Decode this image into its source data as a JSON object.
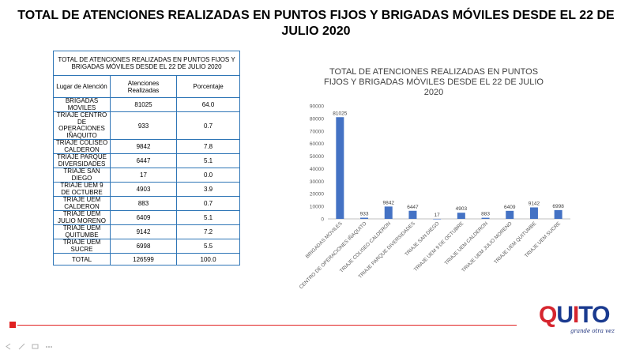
{
  "slide": {
    "title": "TOTAL DE ATENCIONES REALIZADAS EN PUNTOS FIJOS Y BRIGADAS MÓVILES DESDE EL 22 DE JULIO 2020"
  },
  "table": {
    "caption": "TOTAL DE ATENCIONES REALIZADAS  EN PUNTOS FIJOS Y BRIGADAS MÓVILES DESDE EL 22 DE JULIO 2020",
    "headers": [
      "Lugar de Atención",
      "Atenciones Realizadas",
      "Porcentaje"
    ],
    "rows": [
      {
        "place": "BRIGADAS MOVILES",
        "count": "81025",
        "pct": "64.0"
      },
      {
        "place": "TRIAJE CENTRO DE OPERACIONES IÑAQUITO",
        "count": "933",
        "pct": "0.7"
      },
      {
        "place": "TRIAJE COLISEO CALDERON",
        "count": "9842",
        "pct": "7.8"
      },
      {
        "place": "TRIAJE PARQUE DIVERSIDADES",
        "count": "6447",
        "pct": "5.1"
      },
      {
        "place": "TRIAJE SAN DIEGO",
        "count": "17",
        "pct": "0.0"
      },
      {
        "place": "TRIAJE UEM 9 DE OCTUBRE",
        "count": "4903",
        "pct": "3.9"
      },
      {
        "place": "TRIAJE UEM CALDERON",
        "count": "883",
        "pct": "0.7"
      },
      {
        "place": "TRIAJE UEM JULIO MORENO",
        "count": "6409",
        "pct": "5.1"
      },
      {
        "place": "TRIAJE UEM QUITUMBE",
        "count": "9142",
        "pct": "7.2"
      },
      {
        "place": "TRIAJE UEM SUCRE",
        "count": "6998",
        "pct": "5.5"
      }
    ],
    "total": {
      "place": "TOTAL",
      "count": "126599",
      "pct": "100.0"
    }
  },
  "chart_data": {
    "type": "bar",
    "title": "TOTAL DE ATENCIONES REALIZADAS EN PUNTOS FIJOS Y BRIGADAS MÓVILES DESDE EL 22 DE JULIO 2020",
    "categories": [
      "BRIGADAS MOVILES",
      "CENTRO DE OPERACIONES IÑAQUITO",
      "TRIAJE COLISEO CALDERON",
      "TRIAJE PARQUE DIVERSIDADES",
      "TRIAJE SAN DIEGO",
      "TRIAJE UEM 9 DE OCTUBRE",
      "TRIAJE UEM CALDERON",
      "TRIAJE UEM JULIO MORENO",
      "TRIAJE UEM QUITUMBE",
      "TRIAJE UEM SUCRE"
    ],
    "values": [
      81025,
      933,
      9842,
      6447,
      17,
      4903,
      883,
      6409,
      9142,
      6998
    ],
    "ylim": [
      0,
      90000
    ],
    "yticks": [
      0,
      10000,
      20000,
      30000,
      40000,
      50000,
      60000,
      70000,
      80000,
      90000
    ],
    "grid": false,
    "bar_color": "#4472c4"
  },
  "logo": {
    "text": "QUITO",
    "tagline": "grande otra vez"
  }
}
